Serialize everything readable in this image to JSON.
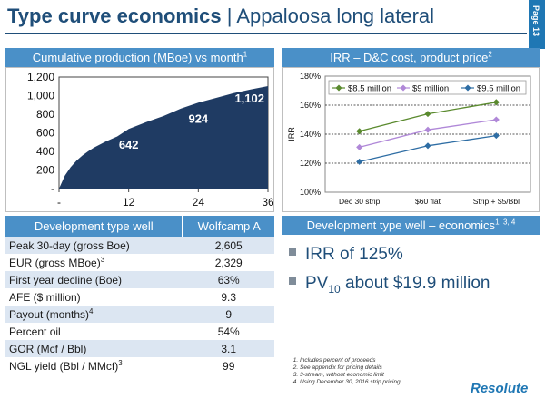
{
  "header": {
    "title_bold": "Type curve economics",
    "title_sep": "|",
    "title_rest": "Appaloosa long lateral",
    "page_label": "Page 13"
  },
  "colors": {
    "primary": "#1f4e79",
    "header_blue": "#4a90c8",
    "area_fill": "#1f3b63",
    "row_shade": "#dce6f2",
    "series": [
      "#5a8a2e",
      "#b088d8",
      "#2e6da4"
    ]
  },
  "left_panel": {
    "title_text": "Cumulative production (MBoe) vs month",
    "title_sup": "1"
  },
  "right_panel": {
    "title_text": "IRR – D&C cost, product price",
    "title_sup": "2"
  },
  "chart_data": [
    {
      "type": "area",
      "x": [
        0,
        1,
        2,
        3,
        4,
        5,
        6,
        8,
        10,
        12,
        15,
        18,
        21,
        24,
        27,
        30,
        33,
        36
      ],
      "y": [
        0,
        140,
        230,
        300,
        355,
        400,
        440,
        505,
        560,
        642,
        715,
        780,
        860,
        924,
        975,
        1025,
        1065,
        1102
      ],
      "data_labels": [
        {
          "x": 12,
          "y": 642,
          "label": "642"
        },
        {
          "x": 24,
          "y": 924,
          "label": "924"
        },
        {
          "x": 36,
          "y": 1102,
          "label": "1,102"
        }
      ],
      "xticks": [
        0,
        12,
        24,
        36
      ],
      "xtick_labels": [
        "-",
        "12",
        "24",
        "36"
      ],
      "yticks": [
        0,
        200,
        400,
        600,
        800,
        1000,
        1200
      ],
      "ytick_labels": [
        "-",
        "200",
        "400",
        "600",
        "800",
        "1,000",
        "1,200"
      ],
      "xlim": [
        0,
        36
      ],
      "ylim": [
        0,
        1200
      ]
    },
    {
      "type": "line",
      "categories": [
        "Dec 30 strip",
        "$60 flat",
        "Strip + $5/Bbl"
      ],
      "series": [
        {
          "name": "$8.5 million",
          "values": [
            142,
            154,
            162
          ]
        },
        {
          "name": "$9 million",
          "values": [
            131,
            143,
            150
          ]
        },
        {
          "name": "$9.5 million",
          "values": [
            121,
            132,
            139
          ]
        }
      ],
      "ylabel": "IRR",
      "yticks": [
        100,
        120,
        140,
        160,
        180
      ],
      "ytick_labels": [
        "100%",
        "120%",
        "140%",
        "160%",
        "180%"
      ],
      "ylim": [
        100,
        180
      ],
      "grid": true,
      "legend": "top"
    }
  ],
  "table": {
    "col1": "Development type well",
    "col2": "Wolfcamp A",
    "rows": [
      {
        "label": "Peak 30-day (gross Boe)",
        "sup": "",
        "value": "2,605"
      },
      {
        "label": "EUR (gross MBoe)",
        "sup": "3",
        "value": "2,329"
      },
      {
        "label": "First year decline (Boe)",
        "sup": "",
        "value": "63%"
      },
      {
        "label": "AFE ($ million)",
        "sup": "",
        "value": "9.3"
      },
      {
        "label": "Payout (months)",
        "sup": "4",
        "value": "9"
      },
      {
        "label": "Percent oil",
        "sup": "",
        "value": "54%"
      },
      {
        "label": "GOR (Mcf / Bbl)",
        "sup": "",
        "value": "3.1"
      },
      {
        "label": "NGL yield (Bbl / MMcf)",
        "sup": "3",
        "value": "99"
      }
    ]
  },
  "econ_panel": {
    "title_text": "Development type well – economics",
    "title_sup": "1, 3, 4",
    "bullet1": "IRR of 125%",
    "bullet2_pre": "PV",
    "bullet2_sub": "10",
    "bullet2_post": " about $19.9 million"
  },
  "footnotes": [
    "Includes percent of proceeds",
    "See appendix for pricing details",
    "3-stream, without economic limit",
    "Using December 30, 2016 strip pricing"
  ],
  "logo": "Resolute"
}
